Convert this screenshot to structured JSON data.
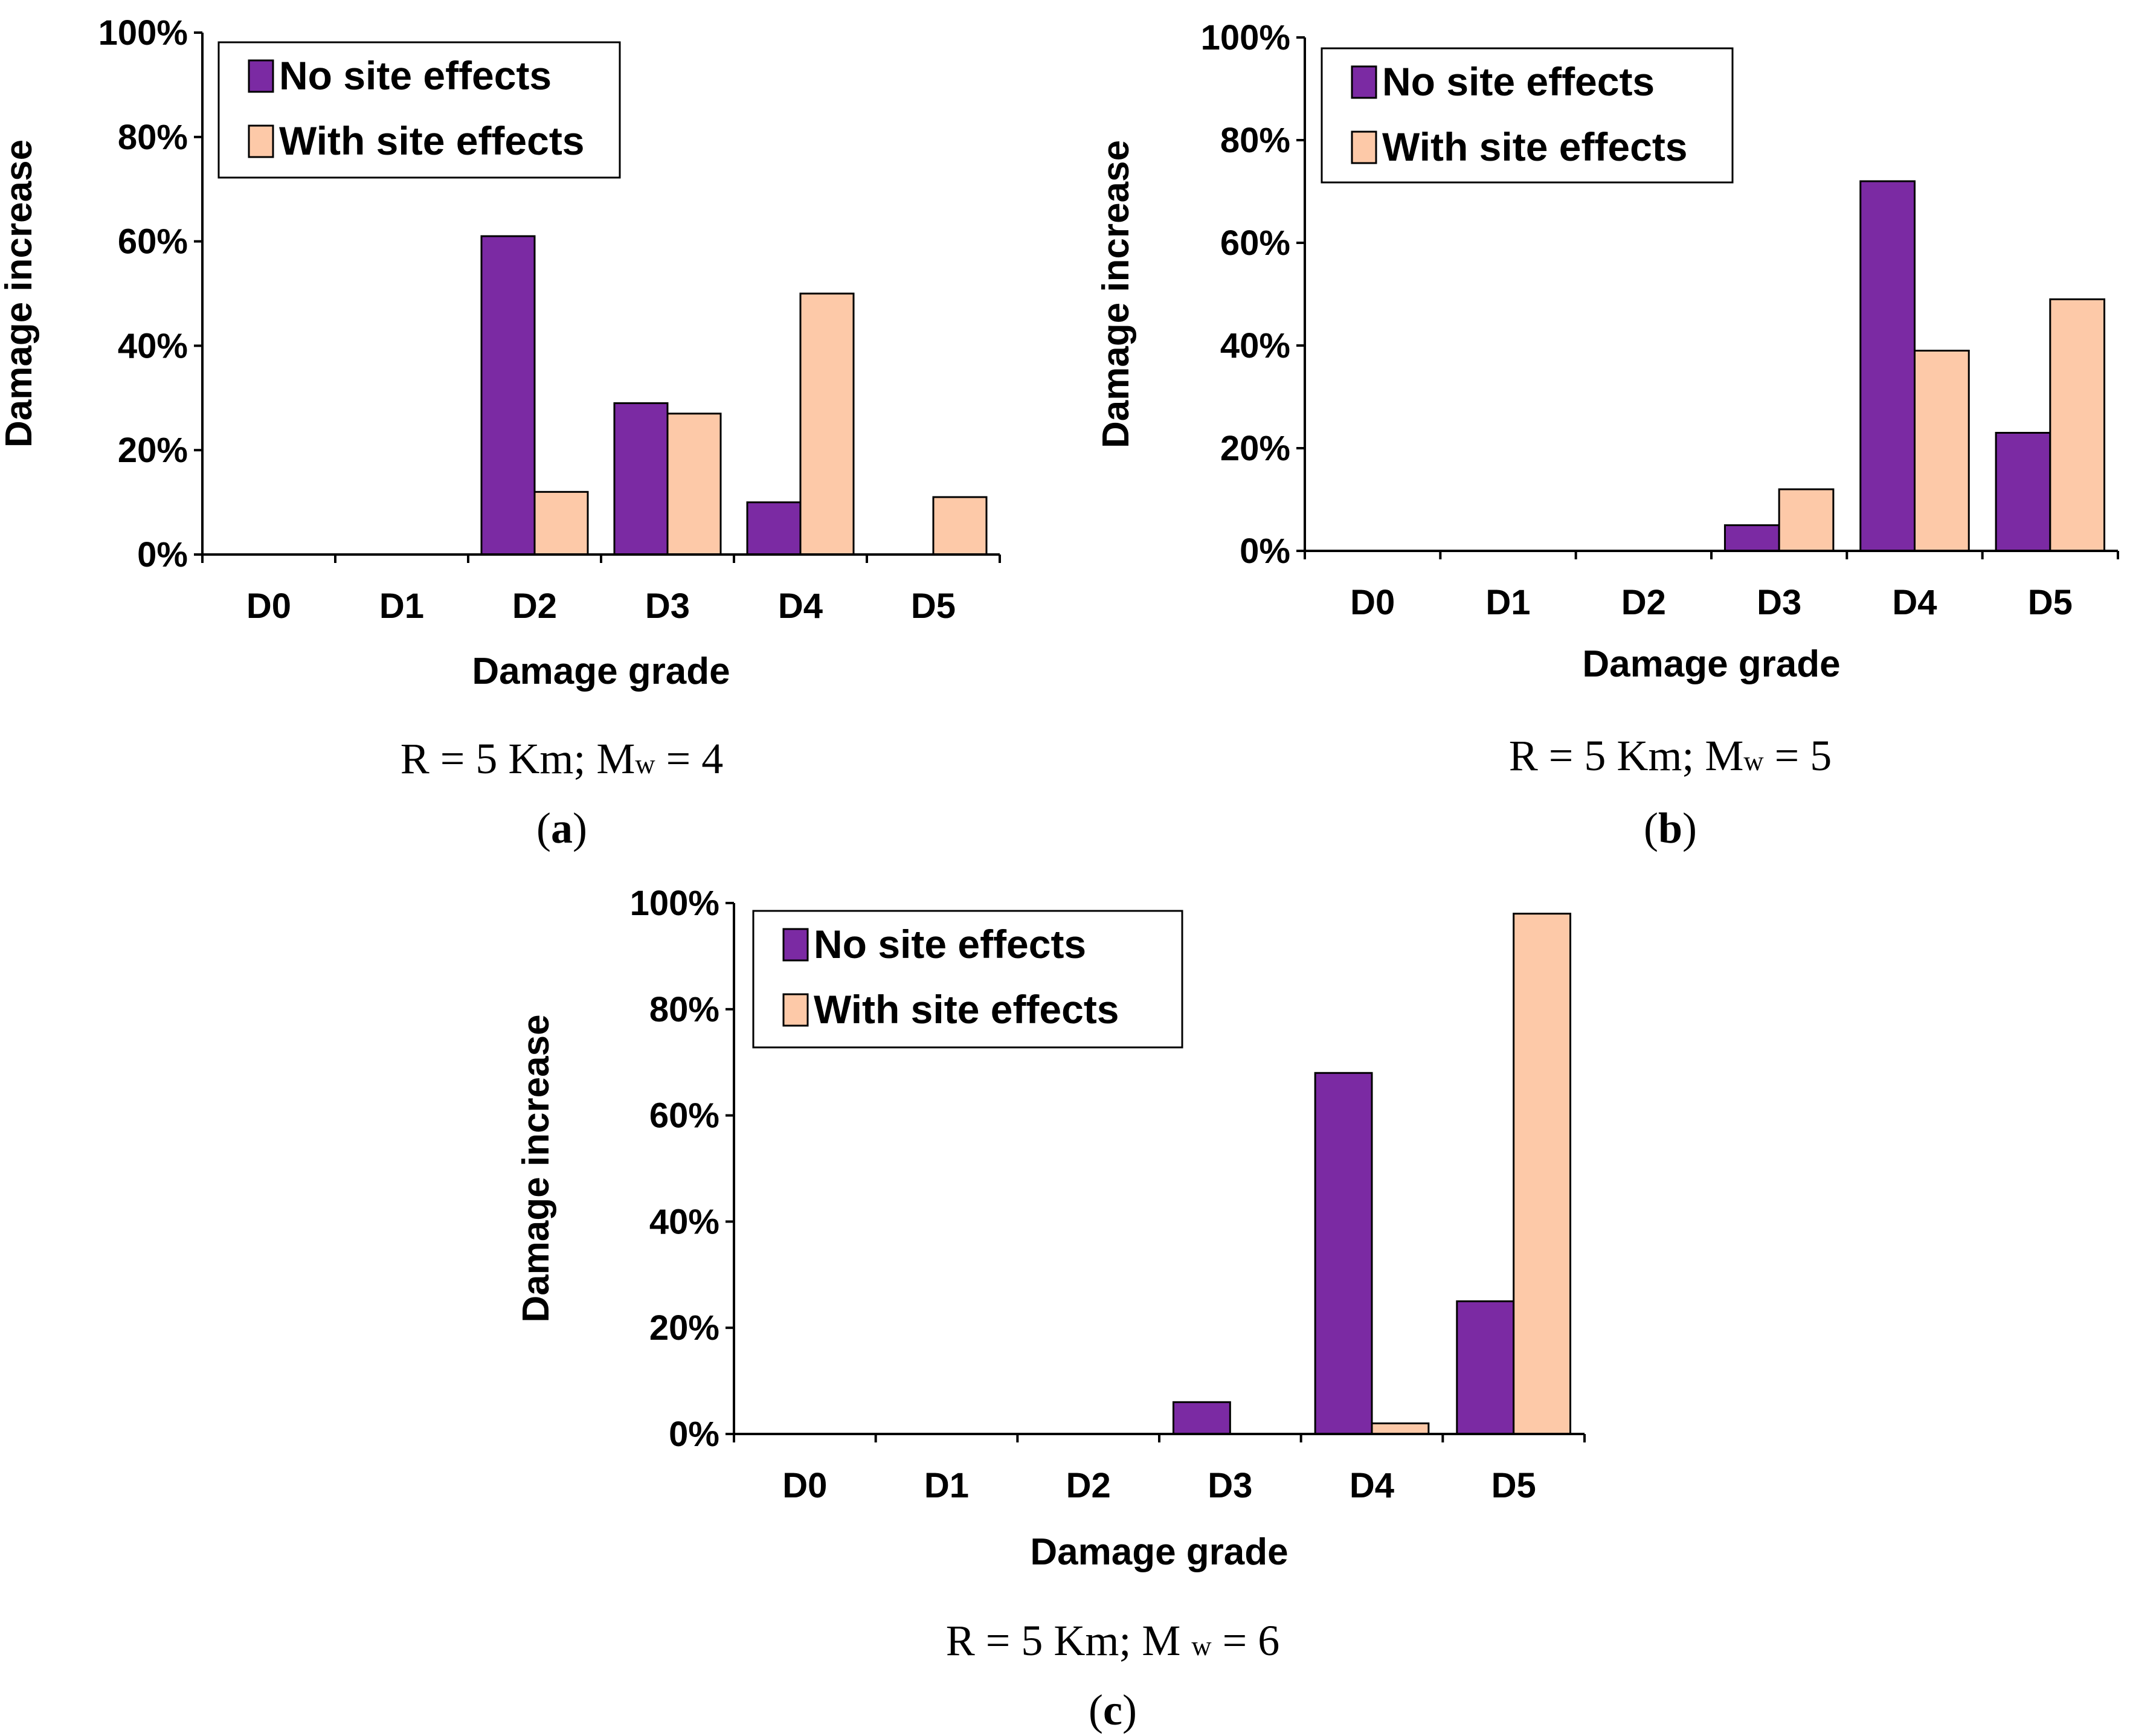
{
  "colors": {
    "no_site": "#7b2aa3",
    "with_site": "#fdc9a8",
    "axis": "#000000"
  },
  "chart_data": [
    {
      "type": "bar",
      "panel": "a",
      "categories": [
        "D0",
        "D1",
        "D2",
        "D3",
        "D4",
        "D5"
      ],
      "series": [
        {
          "name": "No site effects",
          "values": [
            0,
            0,
            61,
            29,
            10,
            0
          ]
        },
        {
          "name": "With site effects",
          "values": [
            0,
            0,
            12,
            27,
            50,
            11
          ]
        }
      ],
      "yticks": [
        "0%",
        "20%",
        "40%",
        "60%",
        "80%",
        "100%"
      ],
      "ylim": [
        0,
        100
      ],
      "xlabel": "Damage grade",
      "ylabel": "Damage increase",
      "caption": {
        "pre": "R = 5 Km; M",
        "sub": "w",
        "post": " = 4"
      },
      "panel_label": {
        "open": "(",
        "letter": "a",
        "close": ")"
      }
    },
    {
      "type": "bar",
      "panel": "b",
      "categories": [
        "D0",
        "D1",
        "D2",
        "D3",
        "D4",
        "D5"
      ],
      "series": [
        {
          "name": "No site effects",
          "values": [
            0,
            0,
            0,
            5,
            72,
            23
          ]
        },
        {
          "name": "With site effects",
          "values": [
            0,
            0,
            0,
            12,
            39,
            49
          ]
        }
      ],
      "yticks": [
        "0%",
        "20%",
        "40%",
        "60%",
        "80%",
        "100%"
      ],
      "ylim": [
        0,
        100
      ],
      "xlabel": "Damage grade",
      "ylabel": "Damage increase",
      "caption": {
        "pre": "R = 5 Km; M",
        "sub": "w",
        "post": " = 5"
      },
      "panel_label": {
        "open": "(",
        "letter": "b",
        "close": ")"
      }
    },
    {
      "type": "bar",
      "panel": "c",
      "categories": [
        "D0",
        "D1",
        "D2",
        "D3",
        "D4",
        "D5"
      ],
      "series": [
        {
          "name": "No site effects",
          "values": [
            0,
            0,
            0,
            6,
            68,
            25
          ]
        },
        {
          "name": "With site effects",
          "values": [
            0,
            0,
            0,
            0,
            2,
            98
          ]
        }
      ],
      "yticks": [
        "0%",
        "20%",
        "40%",
        "60%",
        "80%",
        "100%"
      ],
      "ylim": [
        0,
        100
      ],
      "xlabel": "Damage grade",
      "ylabel": "Damage increase",
      "caption": {
        "pre": "R = 5 Km; M ",
        "sub": "w",
        "post": " = 6"
      },
      "panel_label": {
        "open": "(",
        "letter": "c",
        "close": ")"
      }
    }
  ]
}
